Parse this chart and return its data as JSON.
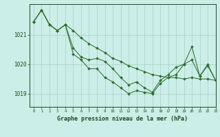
{
  "title": "Graphe pression niveau de la mer (hPa)",
  "background_color": "#cceee8",
  "grid_color": "#aad4cc",
  "line_color": "#2d6e2d",
  "text_color": "#1a4a1a",
  "xlim": [
    -0.5,
    23
  ],
  "ylim": [
    1018.55,
    1022.05
  ],
  "yticks": [
    1019,
    1020,
    1021
  ],
  "xticks": [
    0,
    1,
    2,
    3,
    4,
    5,
    6,
    7,
    8,
    9,
    10,
    11,
    12,
    13,
    14,
    15,
    16,
    17,
    18,
    19,
    20,
    21,
    22,
    23
  ],
  "series": [
    [
      1021.45,
      1021.85,
      1021.35,
      1021.15,
      1021.35,
      1021.15,
      1020.9,
      1020.7,
      1020.55,
      1020.4,
      1020.2,
      1020.1,
      1019.95,
      1019.85,
      1019.75,
      1019.65,
      1019.6,
      1019.55,
      1019.55,
      1019.5,
      1019.55,
      1019.5,
      1019.5,
      1019.45
    ],
    [
      1021.45,
      1021.85,
      1021.35,
      1021.15,
      1021.35,
      1020.55,
      1020.25,
      1020.15,
      1020.2,
      1020.1,
      1019.85,
      1019.55,
      1019.3,
      1019.4,
      1019.2,
      1019.05,
      1019.45,
      1019.65,
      1019.9,
      1020.0,
      1020.6,
      1019.6,
      1020.0,
      1019.45
    ],
    [
      1021.45,
      1021.85,
      1021.35,
      1021.15,
      1021.35,
      1020.35,
      1020.15,
      1019.85,
      1019.85,
      1019.55,
      1019.4,
      1019.2,
      1019.0,
      1019.1,
      1019.05,
      1019.0,
      1019.35,
      1019.55,
      1019.65,
      1020.0,
      1020.15,
      1019.6,
      1019.95,
      1019.45
    ]
  ]
}
